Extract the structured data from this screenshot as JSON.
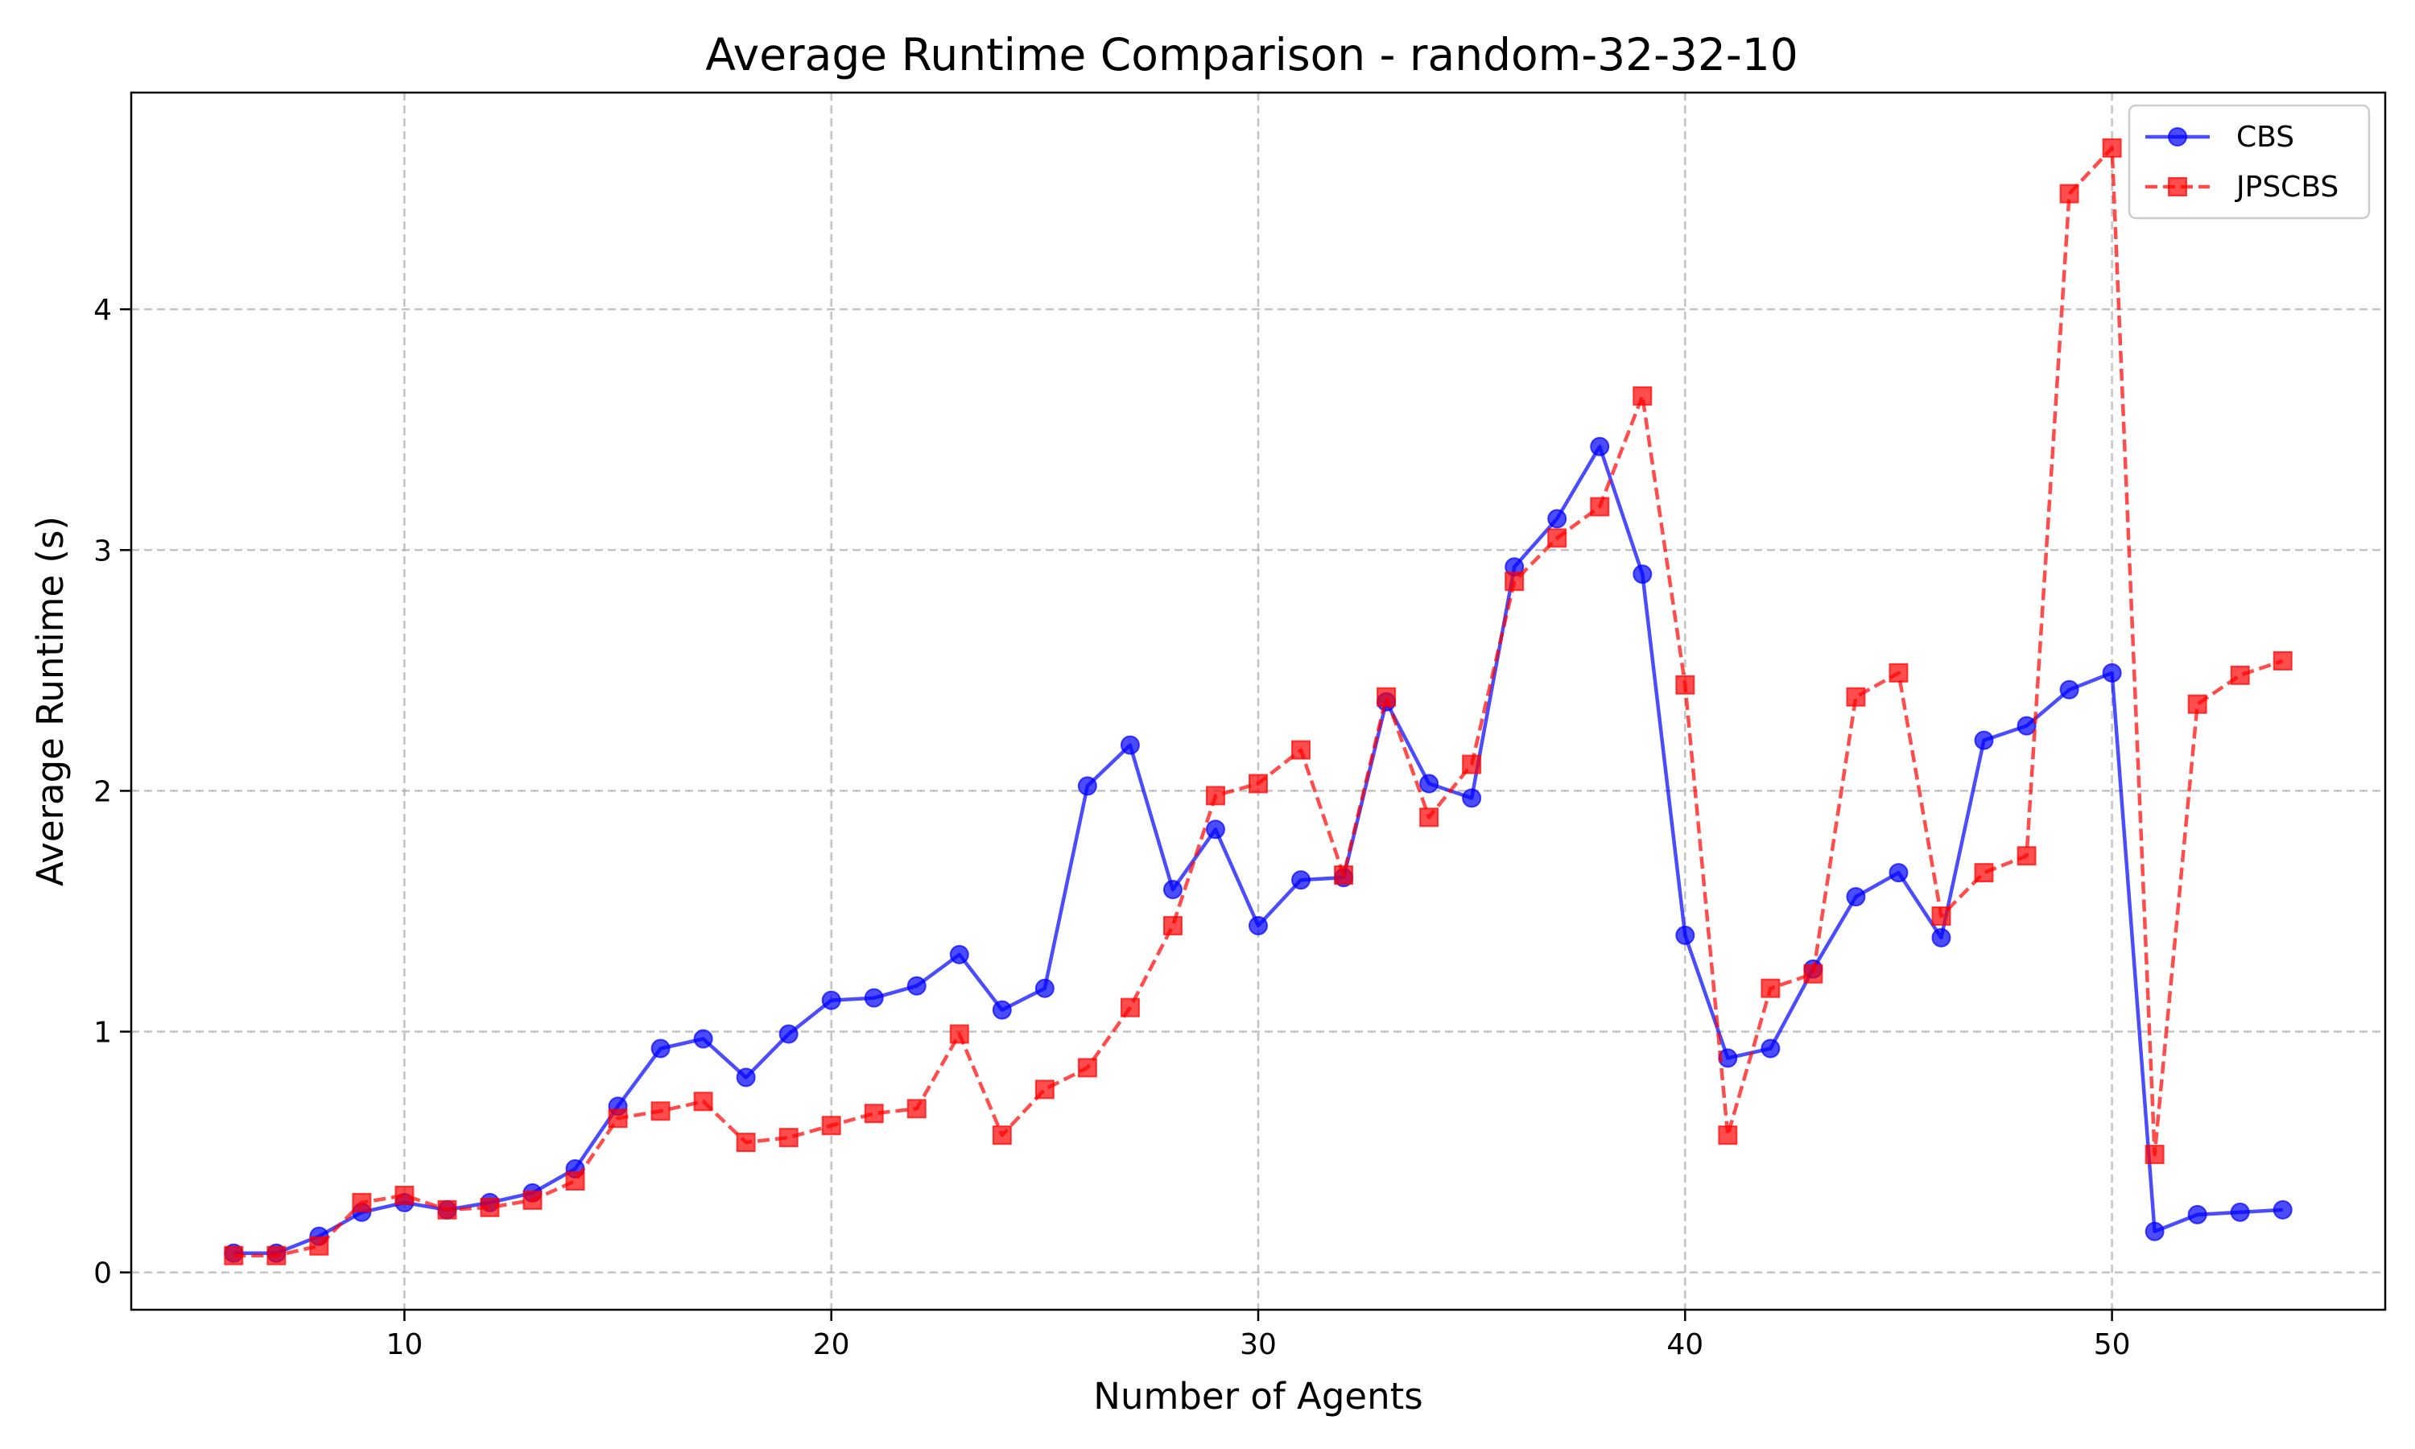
{
  "chart_data": {
    "type": "line",
    "title": "Average Runtime Comparison - random-32-32-10",
    "xlabel": "Number of Agents",
    "ylabel": "Average Runtime (s)",
    "xlim": [
      3.6,
      56.4
    ],
    "ylim": [
      -0.155,
      4.9
    ],
    "xticks": [
      10,
      20,
      30,
      40,
      50
    ],
    "yticks": [
      0,
      1,
      2,
      3,
      4
    ],
    "grid": true,
    "legend_position": "top-right",
    "x": [
      6,
      7,
      8,
      9,
      10,
      11,
      12,
      13,
      14,
      15,
      16,
      17,
      18,
      19,
      20,
      21,
      22,
      23,
      24,
      25,
      26,
      27,
      28,
      29,
      30,
      31,
      32,
      33,
      34,
      35,
      36,
      37,
      38,
      39,
      40,
      41,
      42,
      43,
      44,
      45,
      46,
      47,
      48,
      49,
      50,
      51,
      52,
      53,
      54
    ],
    "series": [
      {
        "name": "CBS",
        "color": "#0000ff",
        "line_style": "solid",
        "marker": "circle",
        "values": [
          0.08,
          0.08,
          0.15,
          0.25,
          0.29,
          0.26,
          0.29,
          0.33,
          0.43,
          0.69,
          0.93,
          0.97,
          0.81,
          0.99,
          1.13,
          1.14,
          1.19,
          1.32,
          1.09,
          1.18,
          2.02,
          2.19,
          1.59,
          1.84,
          1.44,
          1.63,
          1.64,
          2.37,
          2.03,
          1.97,
          2.93,
          3.13,
          3.43,
          2.9,
          1.4,
          0.89,
          0.93,
          1.26,
          1.56,
          1.66,
          1.39,
          2.21,
          2.27,
          2.42,
          2.49,
          0.17,
          0.24,
          0.25,
          0.26
        ]
      },
      {
        "name": "JPSCBS",
        "color": "#ff0000",
        "line_style": "dashed",
        "marker": "square",
        "values": [
          0.07,
          0.07,
          0.11,
          0.29,
          0.32,
          0.26,
          0.27,
          0.3,
          0.38,
          0.64,
          0.67,
          0.71,
          0.54,
          0.56,
          0.61,
          0.66,
          0.68,
          0.99,
          0.57,
          0.76,
          0.85,
          1.1,
          1.44,
          1.98,
          2.03,
          2.17,
          1.65,
          2.39,
          1.89,
          2.11,
          2.87,
          3.05,
          3.18,
          3.64,
          2.44,
          0.57,
          1.18,
          1.24,
          2.39,
          2.49,
          1.48,
          1.66,
          1.73,
          4.48,
          4.67,
          0.49,
          2.36,
          2.48,
          2.54
        ]
      }
    ]
  }
}
